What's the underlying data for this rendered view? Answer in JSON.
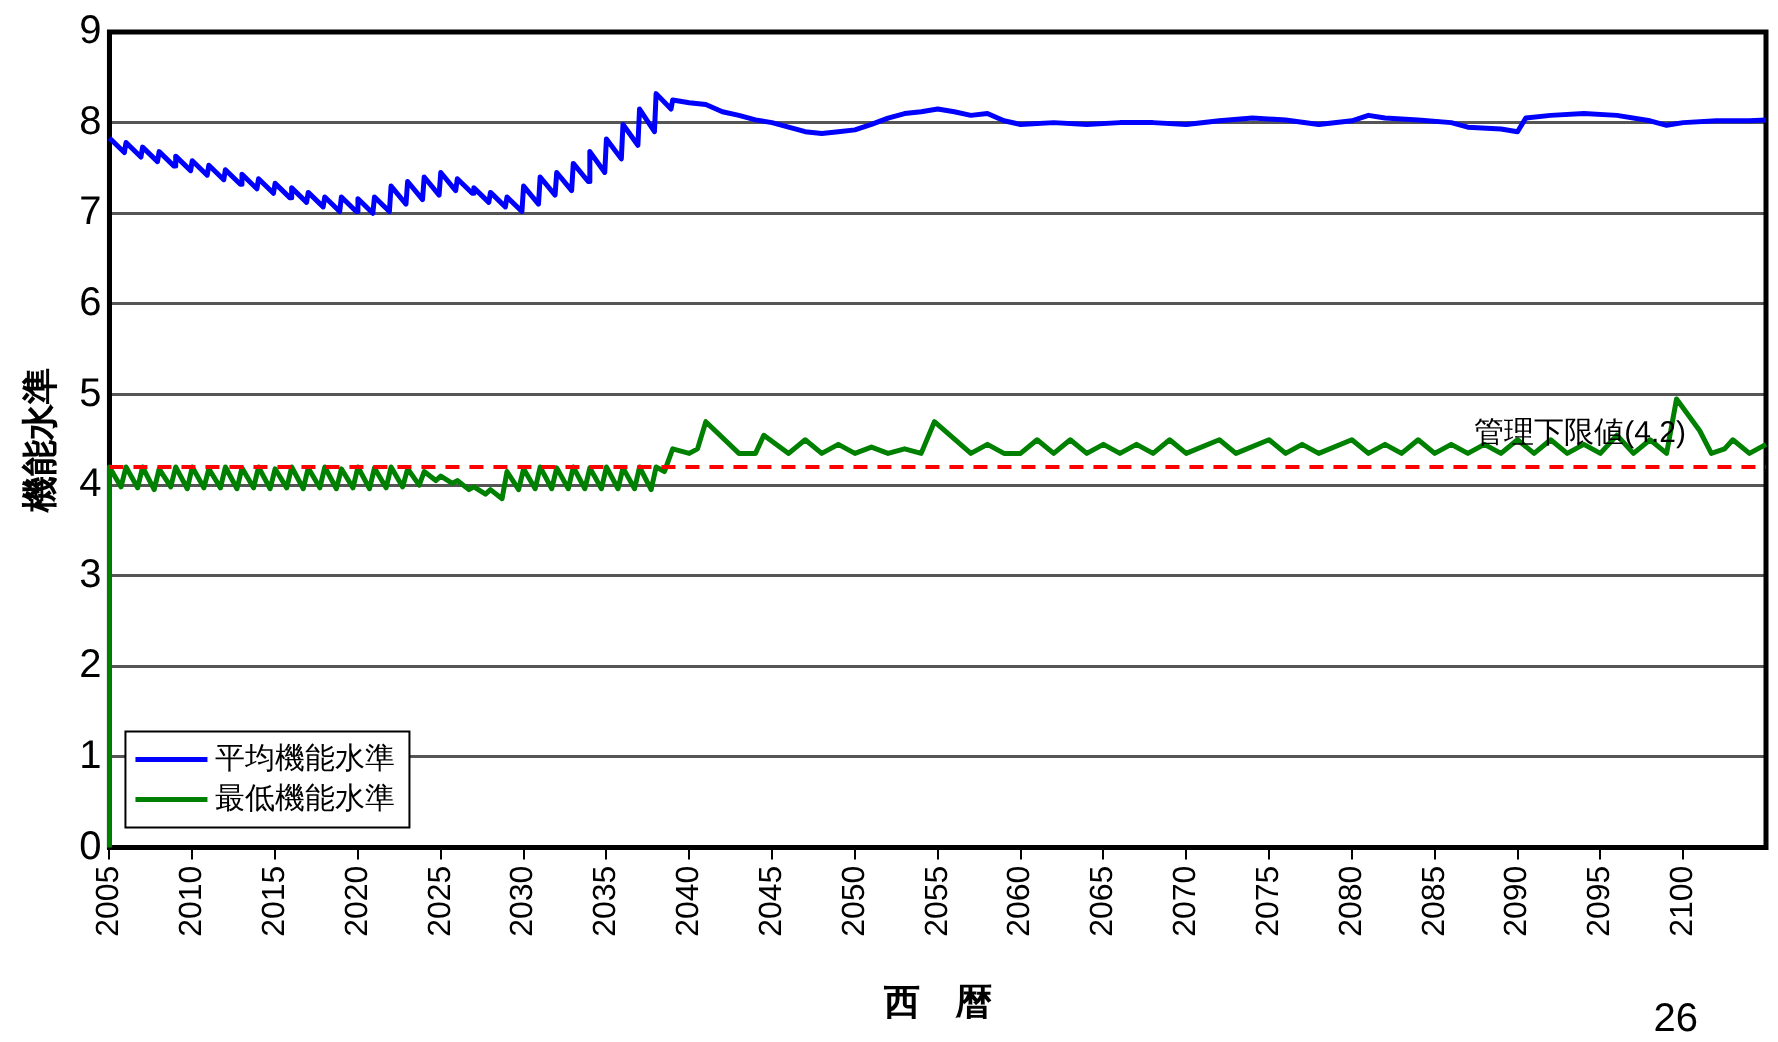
{
  "chart_data": {
    "type": "line",
    "xlabel": "西　暦",
    "ylabel": "機能水準",
    "xlim": [
      2005,
      2105
    ],
    "xticks": [
      2005,
      2010,
      2015,
      2020,
      2025,
      2030,
      2035,
      2040,
      2045,
      2050,
      2055,
      2060,
      2065,
      2070,
      2075,
      2080,
      2085,
      2090,
      2095,
      2100
    ],
    "ylim": [
      0,
      9
    ],
    "yticks": [
      0,
      1,
      2,
      3,
      4,
      5,
      6,
      7,
      8,
      9
    ],
    "grid": "y",
    "legend": "bottom left",
    "marker": "none",
    "line_style": "solid",
    "ref_lines": [
      {
        "axis": "y",
        "value": 4.2,
        "label": "管理下限値(4.2)",
        "color": "#ff0000",
        "line_style": "dashed"
      }
    ],
    "annotations": [
      "26"
    ],
    "series": [
      {
        "name": "平均機能水準",
        "color": "#0000ff",
        "x": [
          2005,
          2005.9,
          2006,
          2006.9,
          2007,
          2007.9,
          2008,
          2008.9,
          2009,
          2009.9,
          2010,
          2010.9,
          2011,
          2011.9,
          2012,
          2012.9,
          2013,
          2013.9,
          2014,
          2014.9,
          2015,
          2015.9,
          2016,
          2016.9,
          2017,
          2017.9,
          2018,
          2018.9,
          2019,
          2019.9,
          2020,
          2020.9,
          2021,
          2021.9,
          2022,
          2022.9,
          2023,
          2023.9,
          2024,
          2024.9,
          2025,
          2025.9,
          2026,
          2026.9,
          2027,
          2027.9,
          2028,
          2028.9,
          2029,
          2029.9,
          2030,
          2030.9,
          2031,
          2031.9,
          2032,
          2032.9,
          2033,
          2033.9,
          2034,
          2034.9,
          2035,
          2035.9,
          2036,
          2036.9,
          2037,
          2037.9,
          2038,
          2038.9,
          2039,
          2040,
          2041,
          2042,
          2043,
          2044,
          2045,
          2046,
          2047,
          2048,
          2049,
          2050,
          2051,
          2052,
          2053,
          2054,
          2055,
          2056,
          2057,
          2058,
          2059,
          2060,
          2062,
          2064,
          2066,
          2068,
          2070,
          2072,
          2074,
          2076,
          2078,
          2080,
          2081,
          2082,
          2084,
          2086,
          2087,
          2089,
          2090,
          2090.5,
          2092,
          2094,
          2096,
          2098,
          2099,
          2100,
          2102,
          2104,
          2105
        ],
        "values": [
          7.83,
          7.67,
          7.78,
          7.62,
          7.73,
          7.57,
          7.68,
          7.52,
          7.63,
          7.47,
          7.58,
          7.42,
          7.53,
          7.37,
          7.48,
          7.32,
          7.43,
          7.27,
          7.38,
          7.22,
          7.33,
          7.17,
          7.28,
          7.12,
          7.23,
          7.07,
          7.18,
          7.02,
          7.18,
          7.02,
          7.16,
          7.0,
          7.18,
          7.02,
          7.3,
          7.1,
          7.35,
          7.15,
          7.4,
          7.2,
          7.45,
          7.25,
          7.38,
          7.22,
          7.28,
          7.12,
          7.23,
          7.07,
          7.18,
          7.02,
          7.3,
          7.1,
          7.4,
          7.2,
          7.45,
          7.25,
          7.55,
          7.35,
          7.68,
          7.45,
          7.82,
          7.6,
          7.98,
          7.75,
          8.15,
          7.9,
          8.32,
          8.15,
          8.25,
          8.22,
          8.2,
          8.12,
          8.08,
          8.03,
          8.0,
          7.95,
          7.9,
          7.88,
          7.9,
          7.92,
          7.98,
          8.05,
          8.1,
          8.12,
          8.15,
          8.12,
          8.08,
          8.1,
          8.02,
          7.98,
          8.0,
          7.98,
          8.0,
          8.0,
          7.98,
          8.02,
          8.05,
          8.03,
          7.98,
          8.02,
          8.08,
          8.05,
          8.03,
          8.0,
          7.95,
          7.93,
          7.9,
          8.05,
          8.08,
          8.1,
          8.08,
          8.02,
          7.97,
          8.0,
          8.02,
          8.02,
          8.03
        ]
      },
      {
        "name": "最低機能水準",
        "color": "#008000",
        "x": [
          2005,
          2005,
          2005.7,
          2006,
          2006.7,
          2007,
          2007.7,
          2008,
          2008.7,
          2009,
          2009.7,
          2010,
          2010.7,
          2011,
          2011.7,
          2012,
          2012.7,
          2013,
          2013.7,
          2014,
          2014.7,
          2015,
          2015.7,
          2016,
          2016.7,
          2017,
          2017.7,
          2018,
          2018.7,
          2019,
          2019.7,
          2020,
          2020.7,
          2021,
          2021.7,
          2022,
          2022.7,
          2023,
          2023.7,
          2024,
          2024.7,
          2025,
          2025.7,
          2026,
          2026.7,
          2027,
          2027.7,
          2028,
          2028.7,
          2029,
          2029.7,
          2030,
          2030.7,
          2031,
          2031.7,
          2032,
          2032.7,
          2033,
          2033.7,
          2034,
          2034.7,
          2035,
          2035.7,
          2036,
          2036.7,
          2037,
          2037.7,
          2038,
          2038.5,
          2039,
          2040,
          2040.5,
          2041,
          2043,
          2044,
          2044.5,
          2046,
          2047,
          2048,
          2049,
          2050,
          2051,
          2052,
          2053,
          2054,
          2054.8,
          2057,
          2058,
          2059,
          2060,
          2061,
          2062,
          2063,
          2064,
          2065,
          2066,
          2067,
          2068,
          2069,
          2070,
          2072,
          2073,
          2075,
          2076,
          2077,
          2078,
          2080,
          2081,
          2082,
          2083,
          2084,
          2085,
          2086,
          2087,
          2088,
          2089,
          2090,
          2091,
          2092,
          2093,
          2094,
          2095,
          2096,
          2097,
          2098,
          2099,
          2099.6,
          2101,
          2101.7,
          2102.5,
          2103,
          2104,
          2105
        ],
        "values": [
          0,
          4.2,
          3.98,
          4.2,
          3.97,
          4.2,
          3.95,
          4.18,
          3.98,
          4.2,
          3.96,
          4.2,
          3.97,
          4.18,
          3.97,
          4.2,
          3.96,
          4.19,
          3.97,
          4.2,
          3.96,
          4.18,
          3.97,
          4.2,
          3.96,
          4.19,
          3.97,
          4.2,
          3.96,
          4.18,
          3.97,
          4.2,
          3.96,
          4.19,
          3.97,
          4.2,
          3.98,
          4.18,
          4.0,
          4.15,
          4.05,
          4.1,
          4.02,
          4.05,
          3.95,
          3.98,
          3.9,
          3.95,
          3.85,
          4.15,
          3.95,
          4.18,
          3.96,
          4.2,
          3.96,
          4.19,
          3.96,
          4.2,
          3.96,
          4.19,
          3.96,
          4.2,
          3.96,
          4.19,
          3.96,
          4.2,
          3.95,
          4.2,
          4.15,
          4.4,
          4.35,
          4.4,
          4.7,
          4.35,
          4.35,
          4.55,
          4.35,
          4.5,
          4.35,
          4.45,
          4.35,
          4.42,
          4.35,
          4.4,
          4.35,
          4.7,
          4.35,
          4.45,
          4.35,
          4.35,
          4.5,
          4.35,
          4.5,
          4.35,
          4.45,
          4.35,
          4.45,
          4.35,
          4.5,
          4.35,
          4.5,
          4.35,
          4.5,
          4.35,
          4.45,
          4.35,
          4.5,
          4.35,
          4.45,
          4.35,
          4.5,
          4.35,
          4.45,
          4.35,
          4.45,
          4.35,
          4.5,
          4.35,
          4.5,
          4.35,
          4.45,
          4.35,
          4.55,
          4.35,
          4.5,
          4.35,
          4.95,
          4.6,
          4.35,
          4.4,
          4.5,
          4.35,
          4.45
        ]
      }
    ]
  }
}
